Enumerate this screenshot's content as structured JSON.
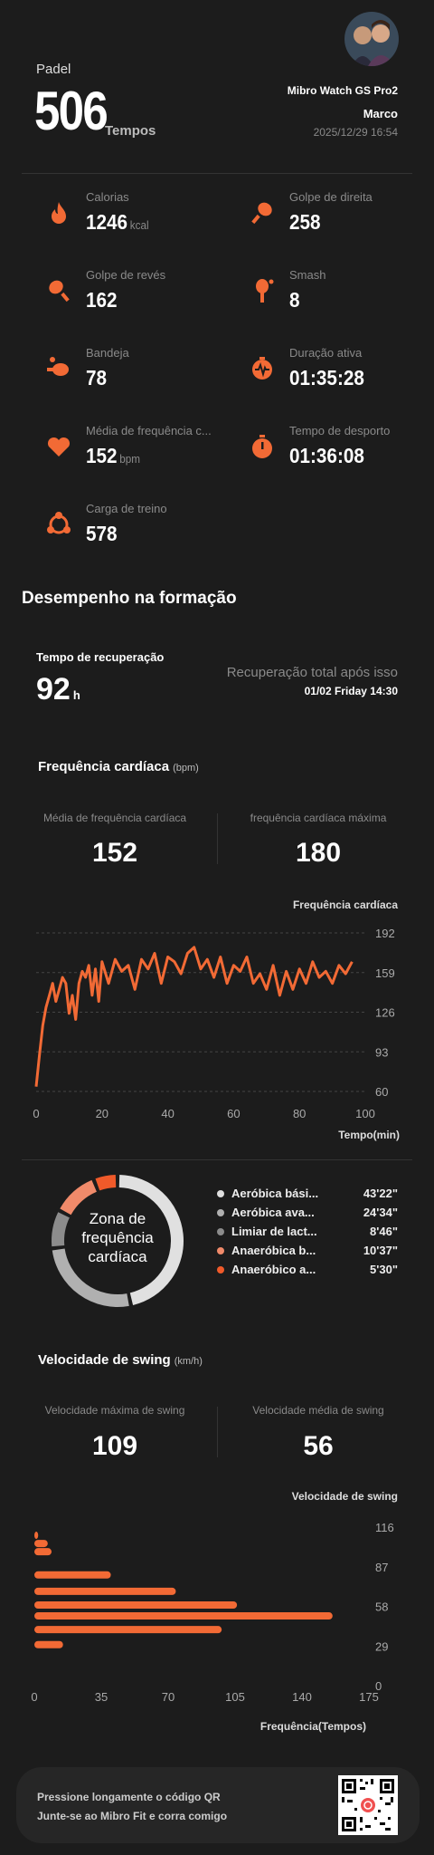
{
  "header": {
    "sport": "Padel",
    "total": "506",
    "total_unit": "Tempos",
    "device": "Mibro Watch GS Pro2",
    "user": "Marco",
    "datetime": "2025/12/29 16:54"
  },
  "stats": [
    {
      "label": "Calorias",
      "value": "1246",
      "unit": "kcal",
      "icon": "flame-icon"
    },
    {
      "label": "Golpe de direita",
      "value": "258",
      "unit": "",
      "icon": "racket-icon"
    },
    {
      "label": "Golpe de revés",
      "value": "162",
      "unit": "",
      "icon": "racket-backhand-icon"
    },
    {
      "label": "Smash",
      "value": "8",
      "unit": "",
      "icon": "smash-icon"
    },
    {
      "label": "Bandeja",
      "value": "78",
      "unit": "",
      "icon": "bandeja-icon"
    },
    {
      "label": "Duração ativa",
      "value": "01:35:28",
      "unit": "",
      "icon": "active-duration-icon"
    },
    {
      "label": "Média de frequência c...",
      "value": "152",
      "unit": "bpm",
      "icon": "heart-icon"
    },
    {
      "label": "Tempo de desporto",
      "value": "01:36:08",
      "unit": "",
      "icon": "stopwatch-icon"
    },
    {
      "label": "Carga de treino",
      "value": "578",
      "unit": "",
      "icon": "training-load-icon"
    }
  ],
  "performance": {
    "title": "Desempenho na formação",
    "recovery_label": "Tempo de recuperação",
    "recovery_value": "92",
    "recovery_unit": "h",
    "full_recovery_label": "Recuperação total após isso",
    "full_recovery_date": "01/02 Friday 14:30"
  },
  "heart_rate": {
    "title": "Frequência cardíaca",
    "unit": "(bpm)",
    "avg_label": "Média de frequência cardíaca",
    "avg_value": "152",
    "max_label": "frequência cardíaca máxima",
    "max_value": "180"
  },
  "zones": {
    "center_label_1": "Zona de",
    "center_label_2": "frequência",
    "center_label_3": "cardíaca",
    "items": [
      {
        "name": "Aeróbica bási...",
        "time": "43'22\"",
        "color": "#e0e0e0",
        "minutes": 43.37
      },
      {
        "name": "Aeróbica ava...",
        "time": "24'34\"",
        "color": "#b0b0b0",
        "minutes": 24.57
      },
      {
        "name": "Limiar de lact...",
        "time": "8'46\"",
        "color": "#8c8c8c",
        "minutes": 8.77
      },
      {
        "name": "Anaeróbica b...",
        "time": "10'37\"",
        "color": "#f08a6a",
        "minutes": 10.62
      },
      {
        "name": "Anaeróbico a...",
        "time": "5'30\"",
        "color": "#f05a2a",
        "minutes": 5.5
      }
    ]
  },
  "swing": {
    "title": "Velocidade de swing",
    "unit": "(km/h)",
    "max_label": "Velocidade máxima de swing",
    "max_value": "109",
    "avg_label": "Velocidade média de swing",
    "avg_value": "56"
  },
  "footer": {
    "line1": "Pressione longamente o código QR",
    "line2": "Junte-se ao Mibro Fit e corra comigo"
  },
  "colors": {
    "accent": "#f26a35",
    "background": "#1c1c1c"
  },
  "chart_data": [
    {
      "type": "line",
      "title": "Frequência cardíaca",
      "xlabel": "Tempo(min)",
      "ylabel": "Frequência cardíaca",
      "xlim": [
        0,
        100
      ],
      "ylim": [
        60,
        192
      ],
      "xticks": [
        "0",
        "20",
        "40",
        "60",
        "80",
        "100"
      ],
      "yticks": [
        "192",
        "159",
        "126",
        "93",
        "60"
      ],
      "grid": true,
      "x": [
        0,
        1,
        2,
        3,
        4,
        5,
        6,
        7,
        8,
        9,
        10,
        11,
        12,
        13,
        14,
        15,
        16,
        17,
        18,
        19,
        20,
        22,
        24,
        26,
        28,
        30,
        32,
        34,
        36,
        38,
        40,
        42,
        44,
        46,
        48,
        50,
        52,
        54,
        56,
        58,
        60,
        62,
        64,
        66,
        68,
        70,
        72,
        74,
        76,
        78,
        80,
        82,
        84,
        86,
        88,
        90,
        92,
        94,
        96
      ],
      "y": [
        64,
        90,
        115,
        130,
        140,
        150,
        135,
        145,
        155,
        150,
        125,
        140,
        120,
        150,
        160,
        155,
        165,
        140,
        162,
        135,
        168,
        150,
        170,
        160,
        165,
        145,
        170,
        162,
        175,
        150,
        172,
        168,
        158,
        175,
        180,
        162,
        170,
        155,
        172,
        150,
        165,
        160,
        172,
        150,
        158,
        145,
        165,
        140,
        160,
        145,
        162,
        150,
        168,
        155,
        160,
        150,
        165,
        158,
        168
      ]
    },
    {
      "type": "bar",
      "orientation": "horizontal",
      "xlabel": "Frequência(Tempos)",
      "ylabel": "Velocidade de swing",
      "xlim": [
        0,
        175
      ],
      "ylim": [
        0,
        116
      ],
      "xticks": [
        "0",
        "35",
        "70",
        "105",
        "140",
        "175"
      ],
      "yticks": [
        "116",
        "87",
        "58",
        "29",
        "0"
      ],
      "categories": [
        110,
        104,
        98,
        81,
        69,
        59,
        51,
        41,
        30
      ],
      "values": [
        2,
        7,
        9,
        40,
        74,
        106,
        156,
        98,
        15
      ]
    }
  ]
}
